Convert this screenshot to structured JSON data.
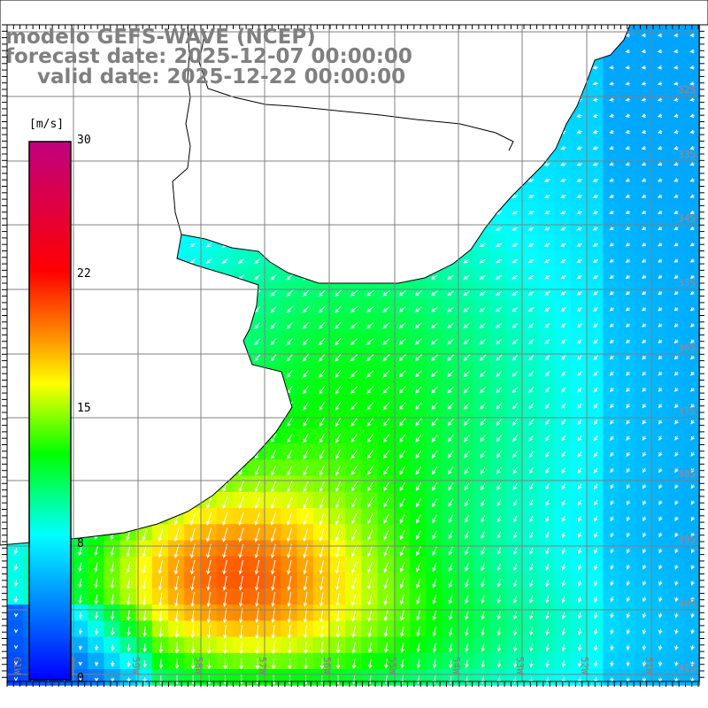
{
  "title": {
    "model": "modelo GEFS-WAVE (NCEP)",
    "forecast": "forecast date: 2025-12-07 00:00:00",
    "valid": "valid date: 2025-12-22 00:00:00"
  },
  "colorbar": {
    "unit": "[m/s]",
    "ticks": [
      "30",
      "22",
      "15",
      "8",
      "0"
    ],
    "range": [
      0,
      30
    ],
    "colors": [
      "#0000ff",
      "#00ffff",
      "#00ff00",
      "#ffff00",
      "#ff8000",
      "#ff0000",
      "#c00080"
    ]
  },
  "axes": {
    "lon_labels": [
      "61W",
      "60W",
      "59W",
      "58W",
      "57W",
      "56W",
      "55W",
      "54W",
      "53W",
      "52W",
      "51W"
    ],
    "lat_labels": [
      "32S",
      "33S",
      "34S",
      "35S",
      "36S",
      "37S",
      "38S",
      "39S",
      "40S",
      "41S"
    ]
  },
  "colors": {
    "grid": "#808080",
    "label": "#808080",
    "land": "#ffffff",
    "coast": "#000000",
    "arrow": "#ffffff"
  }
}
